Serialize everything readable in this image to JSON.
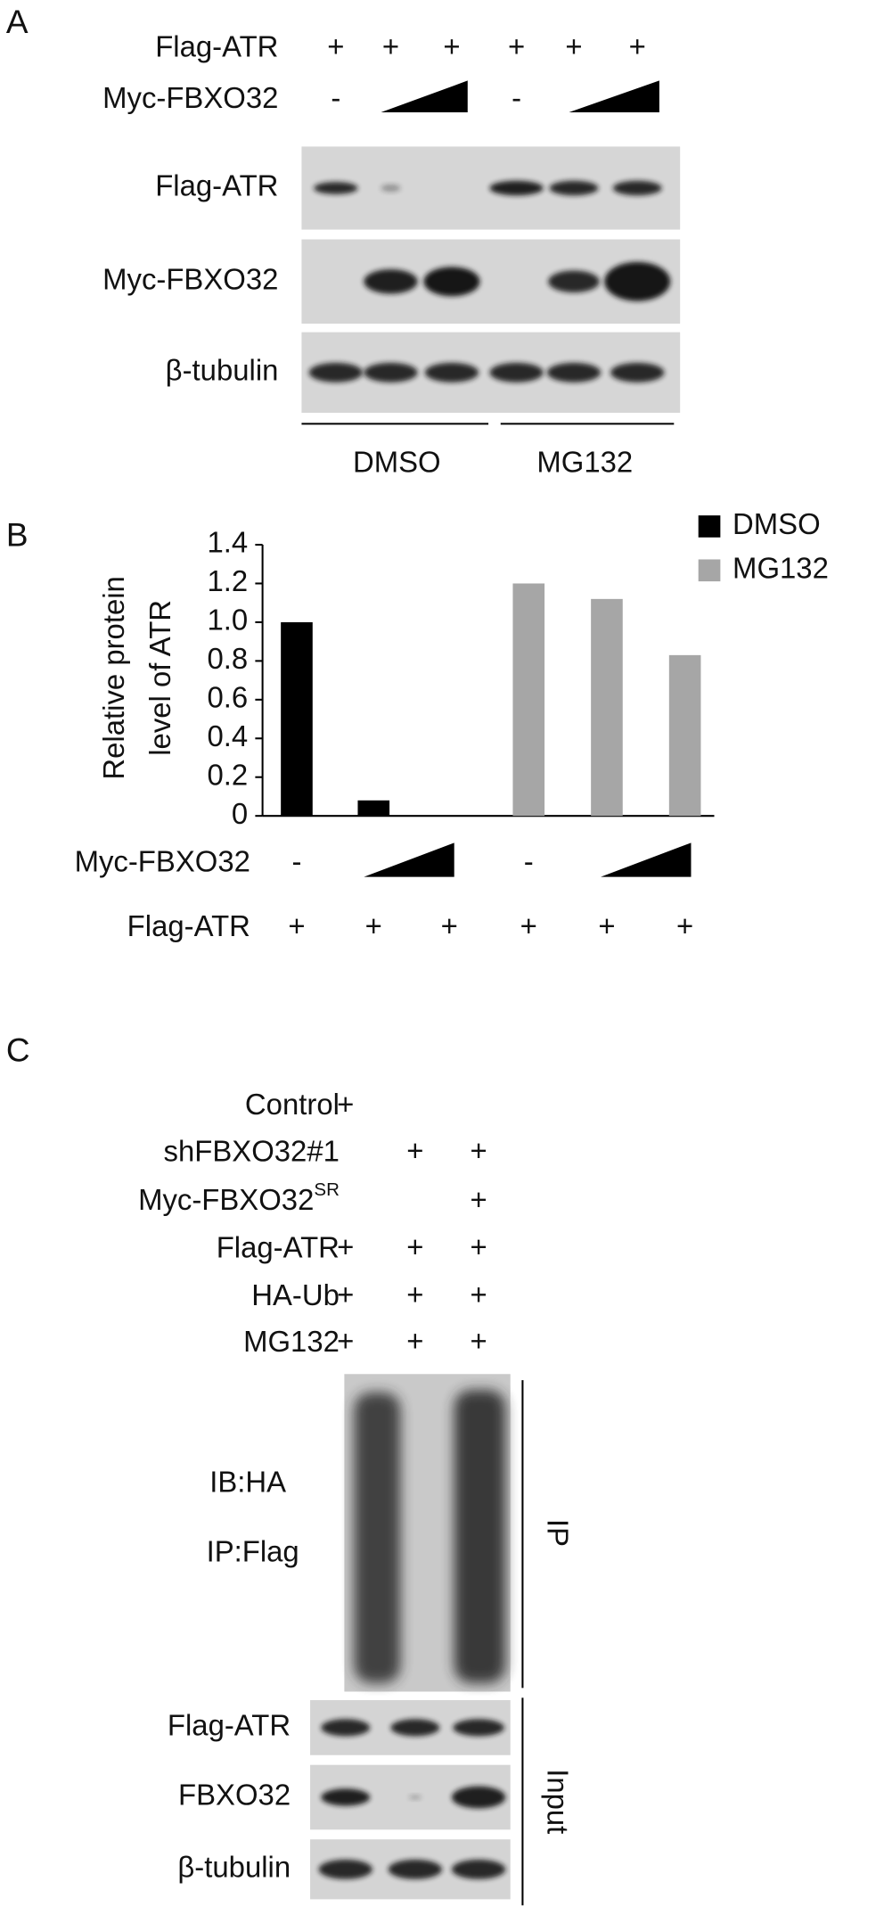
{
  "panel_labels": [
    "A",
    "B",
    "C"
  ],
  "panel_a": {
    "conditions": [
      {
        "label": "Flag-ATR",
        "signs": [
          "+",
          "+",
          "+",
          "+",
          "+",
          "+"
        ]
      },
      {
        "label": "Myc-FBXO32",
        "signs": [
          "-",
          "-"
        ]
      }
    ],
    "blots": [
      "Flag-ATR",
      "Myc-FBXO32",
      "β-tubulin"
    ],
    "groups": [
      "DMSO",
      "MG132"
    ]
  },
  "chart_data": {
    "type": "bar",
    "ylabel": [
      "Relative protein",
      "level of ATR"
    ],
    "categories": [
      null,
      null,
      null,
      null,
      null,
      null
    ],
    "series": [
      {
        "name": "DMSO",
        "color": "#000000",
        "values": [
          1.0,
          0.08,
          0,
          null,
          null,
          null
        ]
      },
      {
        "name": "MG132",
        "color": "#a6a6a6",
        "values": [
          null,
          null,
          null,
          1.2,
          1.12,
          0.83
        ]
      }
    ],
    "ylim": [
      0,
      1.4
    ],
    "yticks": [
      0,
      0.2,
      0.4,
      0.6,
      0.8,
      {
        "value": 1.0,
        "label": "1.0"
      },
      1.2,
      1.4
    ],
    "legend": "upper right",
    "conditions": [
      {
        "label": "Myc-FBXO32",
        "signs": [
          "-",
          "-"
        ]
      },
      {
        "label": "Flag-ATR",
        "signs": [
          "+",
          "+",
          "+",
          "+",
          "+",
          "+"
        ]
      }
    ]
  },
  "panel_c": {
    "conditions": [
      {
        "label": "Control",
        "signs": [
          "+",
          null,
          null
        ]
      },
      {
        "label": "shFBXO32#1",
        "signs": [
          null,
          "+",
          "+"
        ]
      },
      {
        "label": "Myc-FBXO32",
        "superscript": "SR",
        "signs": [
          null,
          null,
          "+"
        ]
      },
      {
        "label": "Flag-ATR",
        "signs": [
          "+",
          "+",
          "+"
        ]
      },
      {
        "label": "HA-Ub",
        "signs": [
          "+",
          "+",
          "+"
        ]
      },
      {
        "label": "MG132",
        "signs": [
          "+",
          "+",
          "+"
        ]
      }
    ],
    "ip_blot": {
      "labels": [
        "IB:HA",
        "IP:Flag"
      ],
      "group": "IP"
    },
    "input_blots": {
      "labels": [
        "Flag-ATR",
        "FBXO32",
        "β-tubulin"
      ],
      "group": "Input"
    }
  }
}
